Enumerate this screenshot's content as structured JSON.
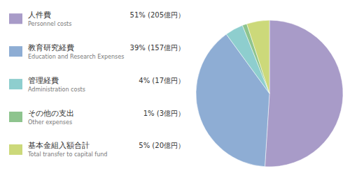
{
  "chart_data": {
    "type": "pie",
    "categories": [
      "人件費",
      "教育研究経費",
      "管理経費",
      "その他の支出",
      "基本金組入額合計"
    ],
    "annotations": [
      "Personnel costs",
      "Education and Research Expenses",
      "Administration costs",
      "Other expenses",
      "Total transfer to capital fund"
    ],
    "values": [
      51,
      39,
      4,
      1,
      5
    ],
    "value_labels": [
      "51% (205億円）",
      "39% (157億円）",
      "4% (17億円）",
      "1% (3億円）",
      "5% (20億円）"
    ],
    "colors": [
      "#a89bc8",
      "#8eadd4",
      "#8ecece",
      "#8ec48e",
      "#ccd97a"
    ],
    "legend": "left"
  }
}
